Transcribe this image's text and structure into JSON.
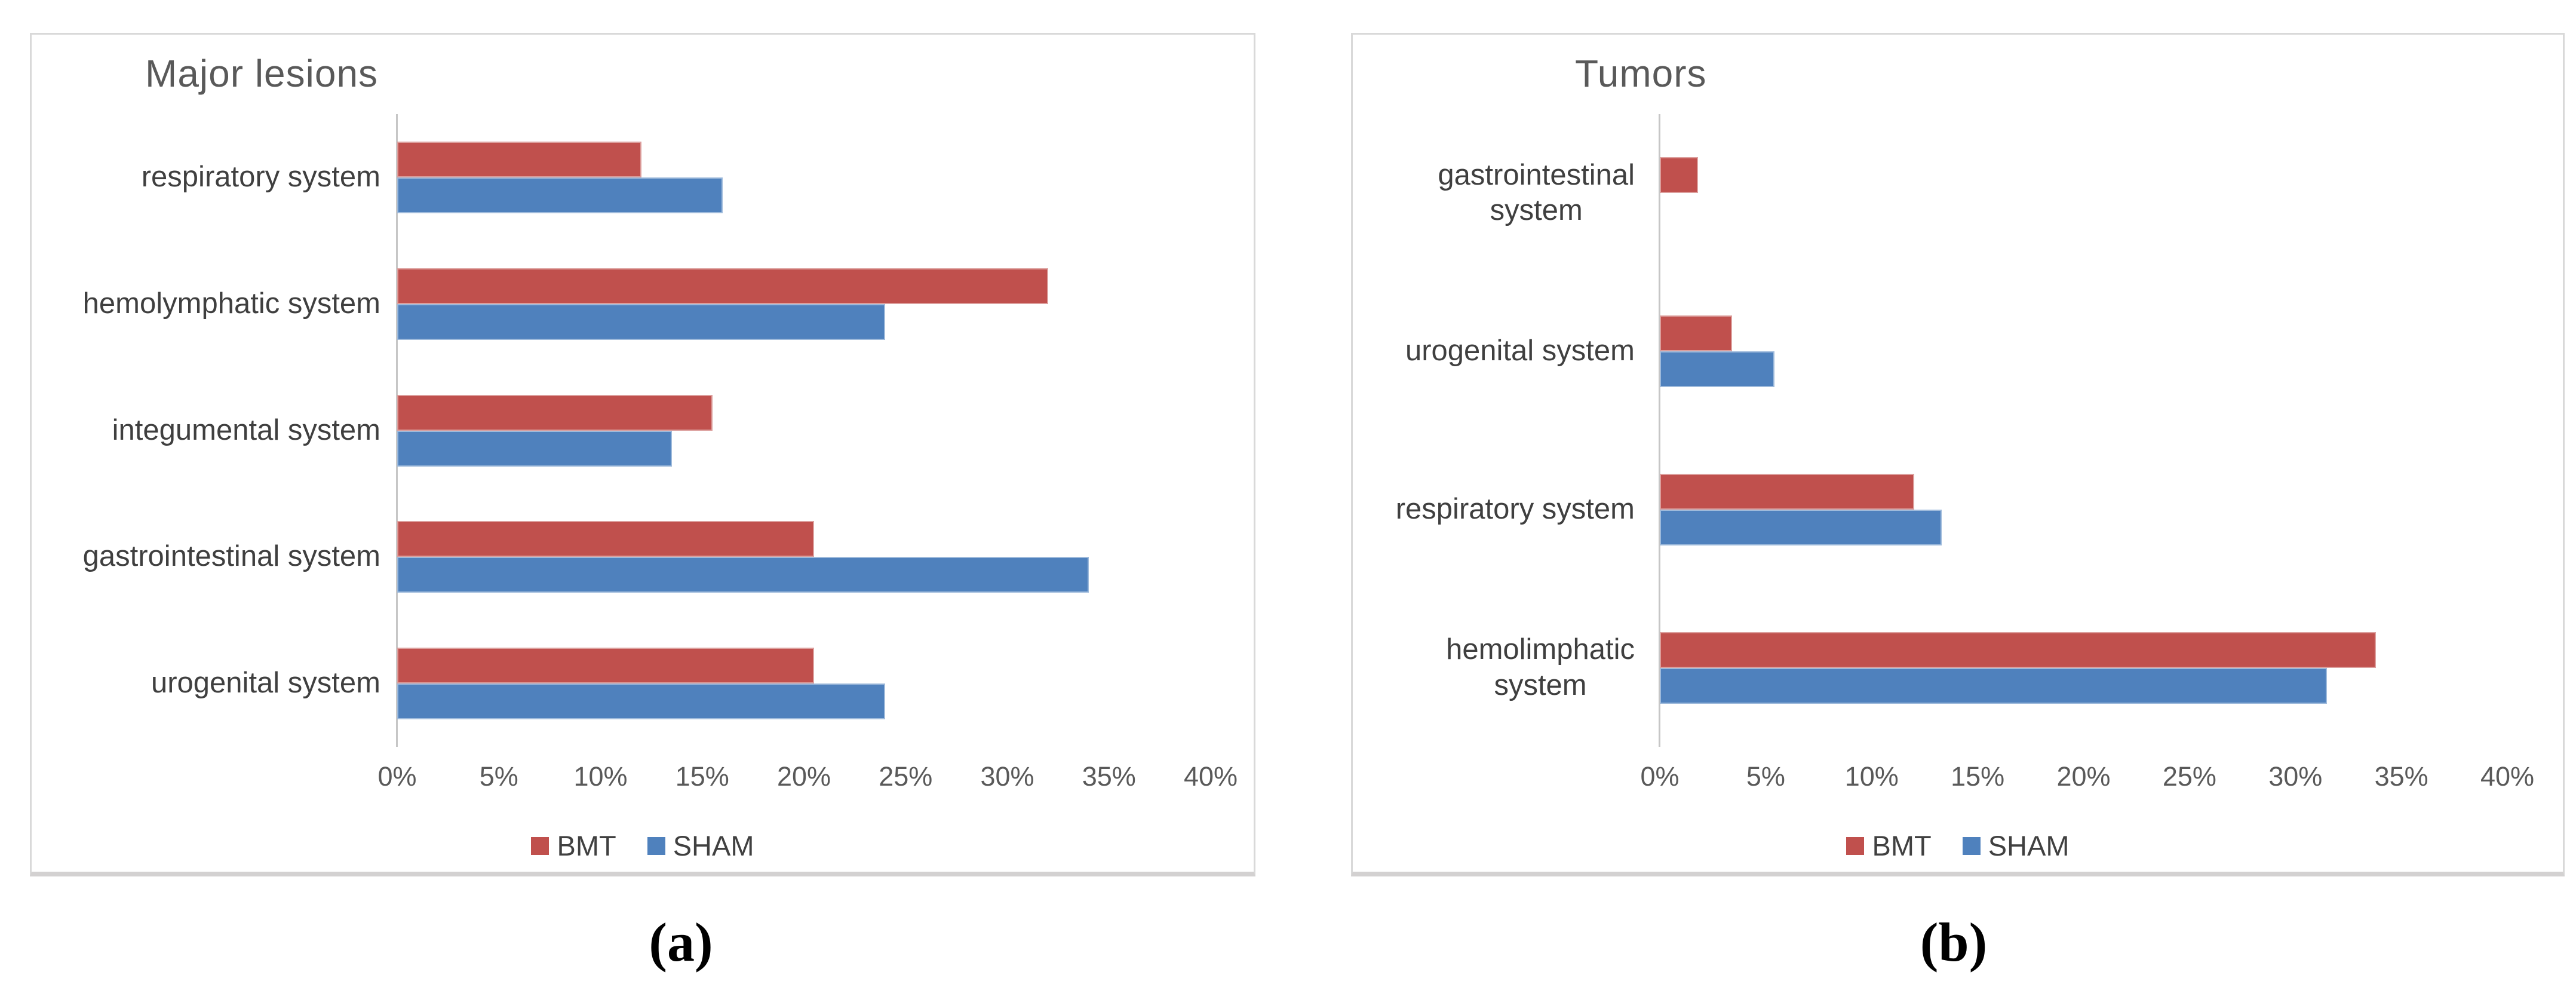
{
  "captions": {
    "left": "(a)",
    "right": "(b)"
  },
  "colors": {
    "bmt": "#C0504D",
    "sham": "#4F81BD",
    "panel_border": "#D9D9D9",
    "axis_line": "#C6C6C6",
    "title_text": "#595959",
    "category_text": "#3F3F3F",
    "tick_text": "#595959"
  },
  "legend": {
    "items": [
      {
        "label": "BMT",
        "color": "#C0504D"
      },
      {
        "label": "SHAM",
        "color": "#4F81BD"
      }
    ]
  },
  "chart_data": [
    {
      "type": "bar",
      "orientation": "horizontal",
      "title": "Major lesions",
      "caption": "(a)",
      "categories": [
        "respiratory system",
        "hemolymphatic system",
        "integumental system",
        "gastrointestinal system",
        "urogenital system"
      ],
      "categories_lines": [
        [
          "respiratory system"
        ],
        [
          "hemolymphatic system"
        ],
        [
          "integumental system"
        ],
        [
          "gastrointestinal system"
        ],
        [
          "urogenital system"
        ]
      ],
      "series": [
        {
          "name": "BMT",
          "color": "#C0504D",
          "values": [
            12,
            32,
            15.5,
            20.5,
            20.5
          ]
        },
        {
          "name": "SHAM",
          "color": "#4F81BD",
          "values": [
            16,
            24,
            13.5,
            34,
            24
          ]
        }
      ],
      "xlim": [
        0,
        40
      ],
      "xtick_step": 5,
      "xticks": [
        "0%",
        "5%",
        "10%",
        "15%",
        "20%",
        "25%",
        "30%",
        "35%",
        "40%"
      ],
      "xlabel": "",
      "ylabel": "",
      "grid": false,
      "legend_position": "bottom"
    },
    {
      "type": "bar",
      "orientation": "horizontal",
      "title": "Tumors",
      "caption": "(b)",
      "categories": [
        "gastrointestinal system",
        "urogenital system",
        "respiratory system",
        "hemolimphatic system"
      ],
      "categories_lines": [
        [
          "gastrointestinal",
          "system"
        ],
        [
          "urogenital system"
        ],
        [
          "respiratory system"
        ],
        [
          "hemolimphatic",
          "system"
        ]
      ],
      "series": [
        {
          "name": "BMT",
          "color": "#C0504D",
          "values": [
            1.8,
            3.4,
            12,
            33.8
          ]
        },
        {
          "name": "SHAM",
          "color": "#4F81BD",
          "values": [
            0,
            5.4,
            13.3,
            31.5
          ]
        }
      ],
      "xlim": [
        0,
        40
      ],
      "xtick_step": 5,
      "xticks": [
        "0%",
        "5%",
        "10%",
        "15%",
        "20%",
        "25%",
        "30%",
        "35%",
        "40%"
      ],
      "xlabel": "",
      "ylabel": "",
      "grid": false,
      "legend_position": "bottom"
    }
  ]
}
